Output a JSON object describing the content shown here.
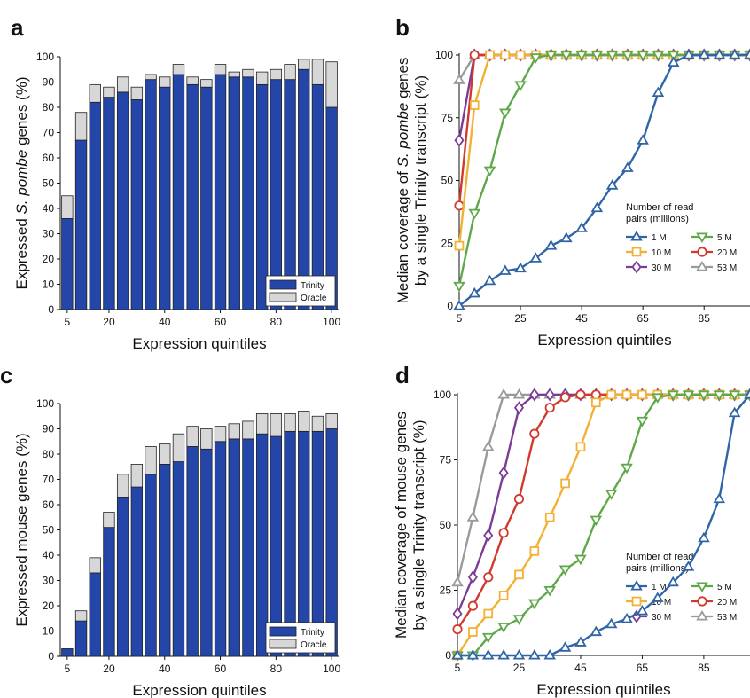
{
  "colors": {
    "trinity": "#2346a8",
    "oracle": "#d7d7d7",
    "bar_stroke": "#222222",
    "series": {
      "1 M": "#2f64a6",
      "5 M": "#5fa84a",
      "10 M": "#f2b134",
      "20 M": "#d03a2e",
      "30 M": "#7b3c96",
      "53 M": "#9a9a9a"
    }
  },
  "chart_data": [
    {
      "panel": "a",
      "type": "bar",
      "stacked": true,
      "xlabel": "Expression quintiles",
      "ylabel": "Expressed S. pombe genes (%)",
      "ylim": [
        0,
        100
      ],
      "yticks": [
        0,
        10,
        20,
        30,
        40,
        50,
        60,
        70,
        80,
        90,
        100
      ],
      "xticks": [
        5,
        20,
        40,
        60,
        80,
        100
      ],
      "categories": [
        5,
        10,
        15,
        20,
        25,
        30,
        35,
        40,
        45,
        50,
        55,
        60,
        65,
        70,
        75,
        80,
        85,
        90,
        95,
        100
      ],
      "series": [
        {
          "name": "Trinity",
          "values": [
            36,
            67,
            82,
            84,
            86,
            83,
            91,
            88,
            93,
            89,
            88,
            93,
            92,
            92,
            89,
            91,
            91,
            95,
            89,
            80
          ]
        },
        {
          "name": "Oracle",
          "values": [
            9,
            11,
            7,
            4,
            6,
            5,
            2,
            4,
            4,
            3,
            3,
            4,
            2,
            3,
            5,
            4,
            6,
            4,
            10,
            18
          ]
        }
      ],
      "legend": [
        "Trinity",
        "Oracle"
      ],
      "legend_position": "bottom-right"
    },
    {
      "panel": "b",
      "type": "line",
      "xlabel": "Expression quintiles",
      "ylabel_lines": [
        "Median coverage of S. pombe genes",
        "by a single Trinity transcript (%)"
      ],
      "ylim": [
        0,
        100
      ],
      "yticks": [
        0,
        25,
        50,
        75,
        100
      ],
      "xticks": [
        5,
        25,
        45,
        65,
        85
      ],
      "xlim": [
        5,
        100
      ],
      "x": [
        5,
        10,
        15,
        20,
        25,
        30,
        35,
        40,
        45,
        50,
        55,
        60,
        65,
        70,
        75,
        80,
        85,
        90,
        95,
        100
      ],
      "series": [
        {
          "name": "1 M",
          "marker": "triangle-up",
          "values": [
            0,
            5,
            10,
            14,
            15,
            19,
            24,
            27,
            31,
            39,
            48,
            55,
            66,
            85,
            97,
            100,
            100,
            100,
            100,
            100
          ]
        },
        {
          "name": "5 M",
          "marker": "triangle-down",
          "values": [
            8,
            37,
            54,
            77,
            88,
            99,
            100,
            100,
            100,
            100,
            100,
            100,
            100,
            100,
            100,
            100,
            100,
            100,
            100,
            100
          ]
        },
        {
          "name": "10 M",
          "marker": "square",
          "values": [
            24,
            80,
            100,
            100,
            100,
            100,
            100,
            100,
            100,
            100,
            100,
            100,
            100,
            100,
            100,
            100,
            100,
            100,
            100,
            100
          ]
        },
        {
          "name": "20 M",
          "marker": "circle",
          "values": [
            40,
            100,
            100,
            100,
            100,
            100,
            100,
            100,
            100,
            100,
            100,
            100,
            100,
            100,
            100,
            100,
            100,
            100,
            100,
            100
          ]
        },
        {
          "name": "30 M",
          "marker": "diamond",
          "values": [
            66,
            100,
            100,
            100,
            100,
            100,
            100,
            100,
            100,
            100,
            100,
            100,
            100,
            100,
            100,
            100,
            100,
            100,
            100,
            100
          ]
        },
        {
          "name": "53 M",
          "marker": "triangle-up",
          "values": [
            90,
            100,
            100,
            100,
            100,
            100,
            100,
            100,
            100,
            100,
            100,
            100,
            100,
            100,
            100,
            100,
            100,
            100,
            100,
            100
          ]
        }
      ],
      "legend_title_lines": [
        "Number of read",
        "pairs (millions)"
      ],
      "legend_position": "lower-right"
    },
    {
      "panel": "c",
      "type": "bar",
      "stacked": true,
      "xlabel": "Expression quintiles",
      "ylabel": "Expressed mouse genes (%)",
      "ylim": [
        0,
        100
      ],
      "yticks": [
        0,
        10,
        20,
        30,
        40,
        50,
        60,
        70,
        80,
        90,
        100
      ],
      "xticks": [
        5,
        20,
        40,
        60,
        80,
        100
      ],
      "categories": [
        5,
        10,
        15,
        20,
        25,
        30,
        35,
        40,
        45,
        50,
        55,
        60,
        65,
        70,
        75,
        80,
        85,
        90,
        95,
        100
      ],
      "series": [
        {
          "name": "Trinity",
          "values": [
            3,
            14,
            33,
            51,
            63,
            67,
            72,
            76,
            77,
            83,
            82,
            85,
            86,
            86,
            88,
            87,
            89,
            89,
            89,
            90
          ]
        },
        {
          "name": "Oracle",
          "values": [
            0,
            4,
            6,
            6,
            9,
            9,
            11,
            8,
            11,
            8,
            8,
            6,
            6,
            7,
            8,
            9,
            7,
            8,
            6,
            6
          ]
        }
      ],
      "legend": [
        "Trinity",
        "Oracle"
      ],
      "legend_position": "bottom-right"
    },
    {
      "panel": "d",
      "type": "line",
      "xlabel": "Expression quintiles",
      "ylabel_lines": [
        "Median coverage of mouse genes",
        "by a single Trinity transcript (%)"
      ],
      "ylim": [
        0,
        100
      ],
      "yticks": [
        0,
        25,
        50,
        75,
        100
      ],
      "xticks": [
        5,
        25,
        45,
        65,
        85
      ],
      "xlim": [
        5,
        100
      ],
      "x": [
        5,
        10,
        15,
        20,
        25,
        30,
        35,
        40,
        45,
        50,
        55,
        60,
        65,
        70,
        75,
        80,
        85,
        90,
        95,
        100
      ],
      "series": [
        {
          "name": "1 M",
          "marker": "triangle-up",
          "values": [
            0,
            0,
            0,
            0,
            0,
            0,
            0,
            3,
            5,
            9,
            12,
            14,
            17,
            22,
            28,
            34,
            45,
            60,
            93,
            100
          ]
        },
        {
          "name": "5 M",
          "marker": "triangle-down",
          "values": [
            0,
            0,
            7,
            11,
            14,
            20,
            25,
            33,
            37,
            52,
            62,
            72,
            90,
            99,
            100,
            100,
            100,
            100,
            100,
            100
          ]
        },
        {
          "name": "10 M",
          "marker": "square",
          "values": [
            0,
            9,
            16,
            23,
            31,
            40,
            53,
            66,
            80,
            97,
            100,
            100,
            100,
            100,
            100,
            100,
            100,
            100,
            100,
            100
          ]
        },
        {
          "name": "20 M",
          "marker": "circle",
          "values": [
            10,
            19,
            30,
            47,
            60,
            85,
            95,
            99,
            100,
            100,
            100,
            100,
            100,
            100,
            100,
            100,
            100,
            100,
            100,
            100
          ]
        },
        {
          "name": "30 M",
          "marker": "diamond",
          "values": [
            16,
            30,
            46,
            70,
            95,
            100,
            100,
            100,
            100,
            100,
            100,
            100,
            100,
            100,
            100,
            100,
            100,
            100,
            100,
            100
          ]
        },
        {
          "name": "53 M",
          "marker": "triangle-up",
          "values": [
            28,
            53,
            80,
            100,
            100,
            100,
            100,
            100,
            100,
            100,
            100,
            100,
            100,
            100,
            100,
            100,
            100,
            100,
            100,
            100
          ]
        }
      ],
      "legend_title_lines": [
        "Number of read",
        "pairs (millions)"
      ],
      "legend_position": "lower-right"
    }
  ]
}
